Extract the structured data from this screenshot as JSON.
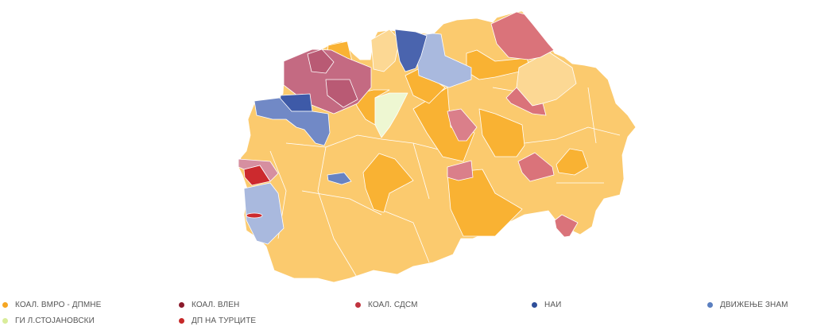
{
  "colors": {
    "vmro_base": "#fbca6e",
    "vmro_strong": "#f9b233",
    "vmro_pale": "#fcd894",
    "vlen": "#c46a82",
    "sdsm": "#da737a",
    "nai": "#3e5aa8",
    "znam": "#7189c6",
    "znam_pale": "#a9b9de",
    "stojanovski": "#eef7d2",
    "dp_turci": "#cc2a2e"
  },
  "legend": [
    {
      "label": "КОАЛ. ВМРО - ДПМНЕ",
      "color": "#f5a623"
    },
    {
      "label": "КОАЛ. ВЛЕН",
      "color": "#8b1a2b"
    },
    {
      "label": "КОАЛ. СДСМ",
      "color": "#c0343f"
    },
    {
      "label": "НАИ",
      "color": "#2e4f9a"
    },
    {
      "label": "ДВИЖЕЊЕ ЗНАМ",
      "color": "#5b7fc0"
    },
    {
      "label": "ГИ Л.СТОЈАНОВСКИ",
      "color": "#d9ec9a"
    },
    {
      "label": "ДП НА ТУРЦИТЕ",
      "color": "#c62828"
    }
  ]
}
